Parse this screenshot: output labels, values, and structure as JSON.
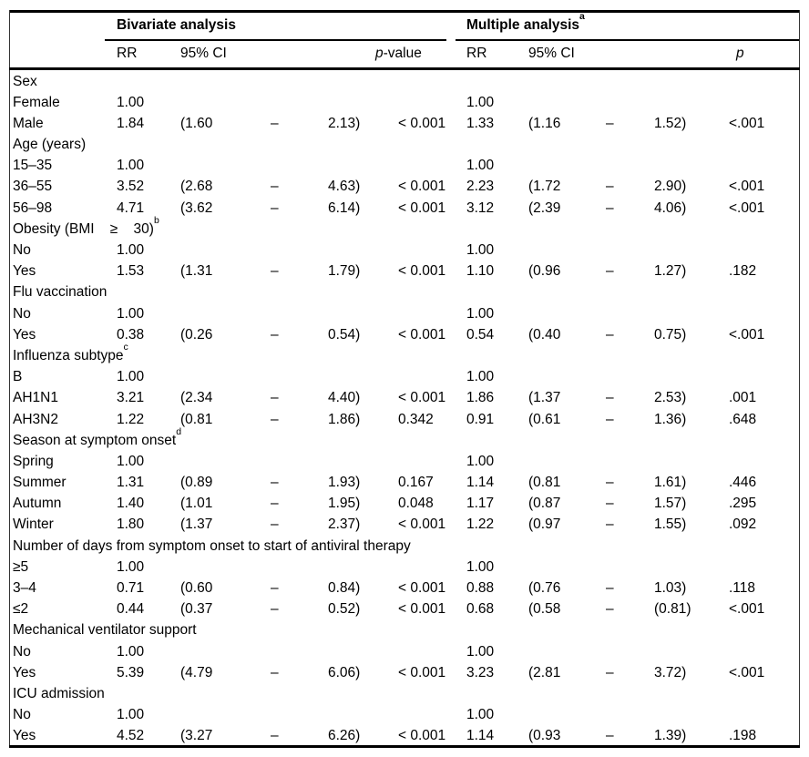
{
  "table": {
    "groups": [
      {
        "label": "Bivariate analysis",
        "sup": ""
      },
      {
        "label": "Multiple analysis",
        "sup": "a"
      }
    ],
    "columns": {
      "rr1": "RR",
      "ci1": "95% CI",
      "p1_italic": "p",
      "p1_suffix": "-value",
      "rr2": "RR",
      "ci2": "95% CI",
      "p2_italic": "p"
    },
    "rows": [
      {
        "type": "section",
        "label": "Sex",
        "sup": ""
      },
      {
        "type": "data",
        "label": "Female",
        "rr1": "1.00",
        "ci1o": "",
        "ci1d": "",
        "ci1c": "",
        "p1": "",
        "rr2": "1.00",
        "ci2o": "",
        "ci2d": "",
        "ci2c": "",
        "p2": ""
      },
      {
        "type": "data",
        "label": "Male",
        "rr1": "1.84",
        "ci1o": "(1.60",
        "ci1d": "–",
        "ci1c": "2.13)",
        "p1": "< 0.001",
        "rr2": "1.33",
        "ci2o": "(1.16",
        "ci2d": "–",
        "ci2c": "1.52)",
        "p2": "<.001"
      },
      {
        "type": "section",
        "label": "Age (years)",
        "sup": ""
      },
      {
        "type": "data",
        "label": "15–35",
        "rr1": "1.00",
        "ci1o": "",
        "ci1d": "",
        "ci1c": "",
        "p1": "",
        "rr2": "1.00",
        "ci2o": "",
        "ci2d": "",
        "ci2c": "",
        "p2": ""
      },
      {
        "type": "data",
        "label": "36–55",
        "rr1": "3.52",
        "ci1o": "(2.68",
        "ci1d": "–",
        "ci1c": "4.63)",
        "p1": "< 0.001",
        "rr2": "2.23",
        "ci2o": "(1.72",
        "ci2d": "–",
        "ci2c": "2.90)",
        "p2": "<.001"
      },
      {
        "type": "data",
        "label": "56–98",
        "rr1": "4.71",
        "ci1o": "(3.62",
        "ci1d": "–",
        "ci1c": "6.14)",
        "p1": "< 0.001",
        "rr2": "3.12",
        "ci2o": "(2.39",
        "ci2d": "–",
        "ci2c": "4.06)",
        "p2": "<.001"
      },
      {
        "type": "section",
        "label": "Obesity (BMI    ≥    30)",
        "sup": "b"
      },
      {
        "type": "data",
        "label": "No",
        "rr1": "1.00",
        "ci1o": "",
        "ci1d": "",
        "ci1c": "",
        "p1": "",
        "rr2": "1.00",
        "ci2o": "",
        "ci2d": "",
        "ci2c": "",
        "p2": ""
      },
      {
        "type": "data",
        "label": "Yes",
        "rr1": "1.53",
        "ci1o": "(1.31",
        "ci1d": "–",
        "ci1c": "1.79)",
        "p1": "< 0.001",
        "rr2": "1.10",
        "ci2o": "(0.96",
        "ci2d": "–",
        "ci2c": "1.27)",
        "p2": ".182"
      },
      {
        "type": "section",
        "label": "Flu vaccination",
        "sup": ""
      },
      {
        "type": "data",
        "label": "No",
        "rr1": "1.00",
        "ci1o": "",
        "ci1d": "",
        "ci1c": "",
        "p1": "",
        "rr2": "1.00",
        "ci2o": "",
        "ci2d": "",
        "ci2c": "",
        "p2": ""
      },
      {
        "type": "data",
        "label": "Yes",
        "rr1": "0.38",
        "ci1o": "(0.26",
        "ci1d": "–",
        "ci1c": "0.54)",
        "p1": "< 0.001",
        "rr2": "0.54",
        "ci2o": "(0.40",
        "ci2d": "–",
        "ci2c": "0.75)",
        "p2": "<.001"
      },
      {
        "type": "section",
        "label": "Influenza subtype",
        "sup": "c"
      },
      {
        "type": "data",
        "label": "B",
        "rr1": "1.00",
        "ci1o": "",
        "ci1d": "",
        "ci1c": "",
        "p1": "",
        "rr2": "1.00",
        "ci2o": "",
        "ci2d": "",
        "ci2c": "",
        "p2": ""
      },
      {
        "type": "data",
        "label": "AH1N1",
        "rr1": "3.21",
        "ci1o": "(2.34",
        "ci1d": "–",
        "ci1c": "4.40)",
        "p1": "< 0.001",
        "rr2": "1.86",
        "ci2o": "(1.37",
        "ci2d": "–",
        "ci2c": "2.53)",
        "p2": ".001"
      },
      {
        "type": "data",
        "label": "AH3N2",
        "rr1": "1.22",
        "ci1o": "(0.81",
        "ci1d": "–",
        "ci1c": "1.86)",
        "p1": "0.342",
        "rr2": "0.91",
        "ci2o": "(0.61",
        "ci2d": "–",
        "ci2c": "1.36)",
        "p2": ".648"
      },
      {
        "type": "section",
        "label": "Season at symptom onset",
        "sup": "d"
      },
      {
        "type": "data",
        "label": "Spring",
        "rr1": "1.00",
        "ci1o": "",
        "ci1d": "",
        "ci1c": "",
        "p1": "",
        "rr2": "1.00",
        "ci2o": "",
        "ci2d": "",
        "ci2c": "",
        "p2": ""
      },
      {
        "type": "data",
        "label": "Summer",
        "rr1": "1.31",
        "ci1o": "(0.89",
        "ci1d": "–",
        "ci1c": "1.93)",
        "p1": "0.167",
        "rr2": "1.14",
        "ci2o": "(0.81",
        "ci2d": "–",
        "ci2c": "1.61)",
        "p2": ".446"
      },
      {
        "type": "data",
        "label": "Autumn",
        "rr1": "1.40",
        "ci1o": "(1.01",
        "ci1d": "–",
        "ci1c": "1.95)",
        "p1": "0.048",
        "rr2": "1.17",
        "ci2o": "(0.87",
        "ci2d": "–",
        "ci2c": "1.57)",
        "p2": ".295"
      },
      {
        "type": "data",
        "label": "Winter",
        "rr1": "1.80",
        "ci1o": "(1.37",
        "ci1d": "–",
        "ci1c": "2.37)",
        "p1": "< 0.001",
        "rr2": "1.22",
        "ci2o": "(0.97",
        "ci2d": "–",
        "ci2c": "1.55)",
        "p2": ".092"
      },
      {
        "type": "section",
        "label": "Number of days from symptom onset to start of antiviral therapy",
        "sup": ""
      },
      {
        "type": "data",
        "label": "≥5",
        "rr1": "1.00",
        "ci1o": "",
        "ci1d": "",
        "ci1c": "",
        "p1": "",
        "rr2": "1.00",
        "ci2o": "",
        "ci2d": "",
        "ci2c": "",
        "p2": ""
      },
      {
        "type": "data",
        "label": "3–4",
        "rr1": "0.71",
        "ci1o": "(0.60",
        "ci1d": "–",
        "ci1c": "0.84)",
        "p1": "< 0.001",
        "rr2": "0.88",
        "ci2o": "(0.76",
        "ci2d": "–",
        "ci2c": "1.03)",
        "p2": ".118"
      },
      {
        "type": "data",
        "label": "≤2",
        "rr1": "0.44",
        "ci1o": "(0.37",
        "ci1d": "–",
        "ci1c": "0.52)",
        "p1": "< 0.001",
        "rr2": "0.68",
        "ci2o": "(0.58",
        "ci2d": "–",
        "ci2c": "(0.81)",
        "p2": "<.001"
      },
      {
        "type": "section",
        "label": "Mechanical ventilator support",
        "sup": ""
      },
      {
        "type": "data",
        "label": "No",
        "rr1": "1.00",
        "ci1o": "",
        "ci1d": "",
        "ci1c": "",
        "p1": "",
        "rr2": "1.00",
        "ci2o": "",
        "ci2d": "",
        "ci2c": "",
        "p2": ""
      },
      {
        "type": "data",
        "label": "Yes",
        "rr1": "5.39",
        "ci1o": "(4.79",
        "ci1d": "–",
        "ci1c": "6.06)",
        "p1": "< 0.001",
        "rr2": "3.23",
        "ci2o": "(2.81",
        "ci2d": "–",
        "ci2c": "3.72)",
        "p2": "<.001"
      },
      {
        "type": "section",
        "label": "ICU admission",
        "sup": ""
      },
      {
        "type": "data",
        "label": "No",
        "rr1": "1.00",
        "ci1o": "",
        "ci1d": "",
        "ci1c": "",
        "p1": "",
        "rr2": "1.00",
        "ci2o": "",
        "ci2d": "",
        "ci2c": "",
        "p2": ""
      },
      {
        "type": "data",
        "label": "Yes",
        "rr1": "4.52",
        "ci1o": "(3.27",
        "ci1d": "–",
        "ci1c": "6.26)",
        "p1": "< 0.001",
        "rr2": "1.14",
        "ci2o": "(0.93",
        "ci2d": "–",
        "ci2c": "1.39)",
        "p2": ".198"
      }
    ]
  }
}
